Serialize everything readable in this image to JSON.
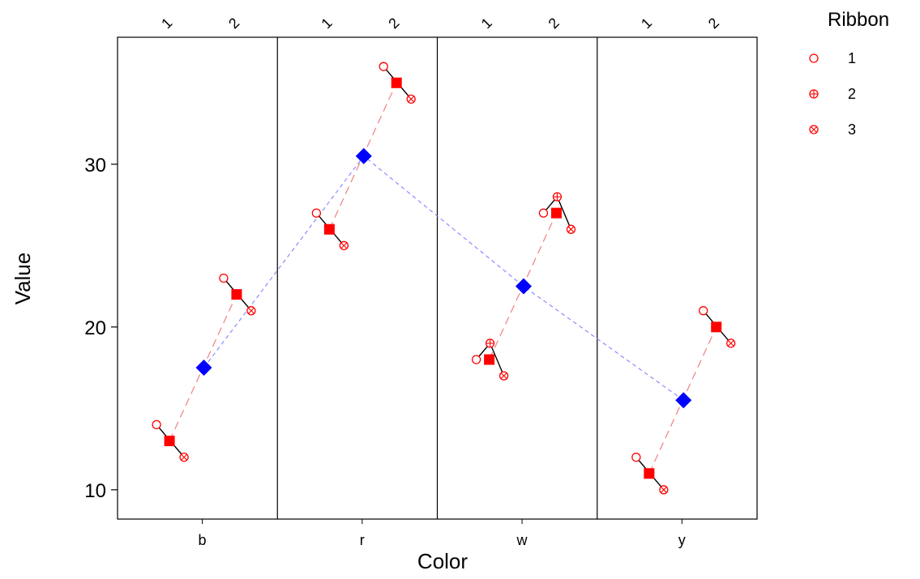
{
  "chart_data": {
    "type": "scatter",
    "xlabel": "Color",
    "ylabel": "Value",
    "panels": [
      "b",
      "r",
      "w",
      "y"
    ],
    "panel_subticks": [
      "1",
      "2"
    ],
    "y_ticks": [
      10,
      20,
      30
    ],
    "ylim": [
      8.2,
      37.8
    ],
    "legend": {
      "title": "Ribbon",
      "position": "top-right",
      "items": [
        "1",
        "2",
        "3"
      ]
    },
    "colors": {
      "points": "#ff0000",
      "panel_mean": "#ff0000",
      "color_mean": "#0000ff",
      "color_mean_line": "#8c8cff",
      "within_line": "#000000"
    },
    "series": [
      {
        "color": "b",
        "slot": "1",
        "ribbon": "1",
        "value": 14
      },
      {
        "color": "b",
        "slot": "1",
        "ribbon": "3",
        "value": 12
      },
      {
        "color": "b",
        "slot": "2",
        "ribbon": "1",
        "value": 23
      },
      {
        "color": "b",
        "slot": "2",
        "ribbon": "3",
        "value": 21
      },
      {
        "color": "r",
        "slot": "1",
        "ribbon": "1",
        "value": 27
      },
      {
        "color": "r",
        "slot": "1",
        "ribbon": "3",
        "value": 25
      },
      {
        "color": "r",
        "slot": "2",
        "ribbon": "1",
        "value": 36
      },
      {
        "color": "r",
        "slot": "2",
        "ribbon": "3",
        "value": 34
      },
      {
        "color": "w",
        "slot": "1",
        "ribbon": "1",
        "value": 18
      },
      {
        "color": "w",
        "slot": "1",
        "ribbon": "2",
        "value": 19
      },
      {
        "color": "w",
        "slot": "1",
        "ribbon": "3",
        "value": 17
      },
      {
        "color": "w",
        "slot": "2",
        "ribbon": "1",
        "value": 27
      },
      {
        "color": "w",
        "slot": "2",
        "ribbon": "2",
        "value": 28
      },
      {
        "color": "w",
        "slot": "2",
        "ribbon": "3",
        "value": 26
      },
      {
        "color": "y",
        "slot": "1",
        "ribbon": "1",
        "value": 12
      },
      {
        "color": "y",
        "slot": "1",
        "ribbon": "3",
        "value": 10
      },
      {
        "color": "y",
        "slot": "2",
        "ribbon": "1",
        "value": 21
      },
      {
        "color": "y",
        "slot": "2",
        "ribbon": "3",
        "value": 19
      }
    ],
    "slot_means": [
      {
        "color": "b",
        "slot": "1",
        "value": 13
      },
      {
        "color": "b",
        "slot": "2",
        "value": 22
      },
      {
        "color": "r",
        "slot": "1",
        "value": 26
      },
      {
        "color": "r",
        "slot": "2",
        "value": 35
      },
      {
        "color": "w",
        "slot": "1",
        "value": 18
      },
      {
        "color": "w",
        "slot": "2",
        "value": 27
      },
      {
        "color": "y",
        "slot": "1",
        "value": 11
      },
      {
        "color": "y",
        "slot": "2",
        "value": 20
      }
    ],
    "color_means": [
      {
        "color": "b",
        "value": 17.5
      },
      {
        "color": "r",
        "value": 30.5
      },
      {
        "color": "w",
        "value": 22.5
      },
      {
        "color": "y",
        "value": 15.5
      }
    ]
  }
}
